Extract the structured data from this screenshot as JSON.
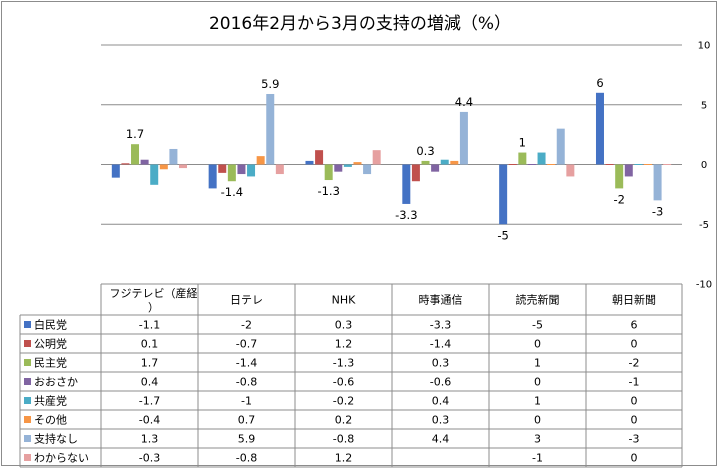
{
  "chart_data": {
    "type": "bar",
    "title": "2016年2月から3月の支持の増減（%）",
    "categories": [
      "フジテレビ（産経）",
      "日テレ",
      "NHK",
      "時事通信",
      "読売新聞",
      "朝日新聞"
    ],
    "ylim": [
      -10,
      10
    ],
    "yticks": [
      10,
      5,
      0,
      -5,
      -10
    ],
    "grid": true,
    "legend": "table-left",
    "series": [
      {
        "name": "白民党",
        "color": "#4472c4",
        "values": [
          -1.1,
          -2,
          0.3,
          -3.3,
          -5,
          6
        ],
        "cells": [
          "-1.1",
          "-2",
          "0.3",
          "-3.3",
          "-5",
          "6"
        ]
      },
      {
        "name": "公明党",
        "color": "#c0504d",
        "values": [
          0.1,
          -0.7,
          1.2,
          -1.4,
          0,
          0
        ],
        "cells": [
          "0.1",
          "-0.7",
          "1.2",
          "-1.4",
          "0",
          "0"
        ]
      },
      {
        "name": "民主党",
        "color": "#9bbb59",
        "values": [
          1.7,
          -1.4,
          -1.3,
          0.3,
          1,
          -2
        ],
        "cells": [
          "1.7",
          "-1.4",
          "-1.3",
          "0.3",
          "1",
          "-2"
        ]
      },
      {
        "name": "おおさか",
        "color": "#8064a2",
        "values": [
          0.4,
          -0.8,
          -0.6,
          -0.6,
          0,
          -1
        ],
        "cells": [
          "0.4",
          "-0.8",
          "-0.6",
          "-0.6",
          "0",
          "-1"
        ]
      },
      {
        "name": "共産党",
        "color": "#4bacc6",
        "values": [
          -1.7,
          -1,
          -0.2,
          0.4,
          1,
          0
        ],
        "cells": [
          "-1.7",
          "-1",
          "-0.2",
          "0.4",
          "1",
          "0"
        ]
      },
      {
        "name": "その他",
        "color": "#f79646",
        "values": [
          -0.4,
          0.7,
          0.2,
          0.3,
          0,
          0
        ],
        "cells": [
          "-0.4",
          "0.7",
          "0.2",
          "0.3",
          "0",
          "0"
        ]
      },
      {
        "name": "支持なし",
        "color": "#95b3d7",
        "values": [
          1.3,
          5.9,
          -0.8,
          4.4,
          3,
          -3
        ],
        "cells": [
          "1.3",
          "5.9",
          "-0.8",
          "4.4",
          "3",
          "-3"
        ]
      },
      {
        "name": "わからない",
        "color": "#e6a0a0",
        "values": [
          -0.3,
          -0.8,
          1.2,
          null,
          -1,
          0
        ],
        "cells": [
          "-0.3",
          "-0.8",
          "1.2",
          "",
          "-1",
          "0"
        ]
      }
    ],
    "annotations": [
      {
        "series": 2,
        "category": 0,
        "text": "1.7"
      },
      {
        "series": 6,
        "category": 1,
        "text": "5.9"
      },
      {
        "series": 2,
        "category": 1,
        "text": "-1.4"
      },
      {
        "series": 2,
        "category": 2,
        "text": "-1.3"
      },
      {
        "series": 6,
        "category": 3,
        "text": "4.4"
      },
      {
        "series": 2,
        "category": 3,
        "text": "0.3"
      },
      {
        "series": 0,
        "category": 3,
        "text": "-3.3"
      },
      {
        "series": 2,
        "category": 4,
        "text": "1"
      },
      {
        "series": 0,
        "category": 4,
        "text": "-5"
      },
      {
        "series": 6,
        "category": 5,
        "text": "-3"
      },
      {
        "series": 2,
        "category": 5,
        "text": "-2"
      },
      {
        "series": 0,
        "category": 5,
        "text": "6"
      }
    ]
  }
}
